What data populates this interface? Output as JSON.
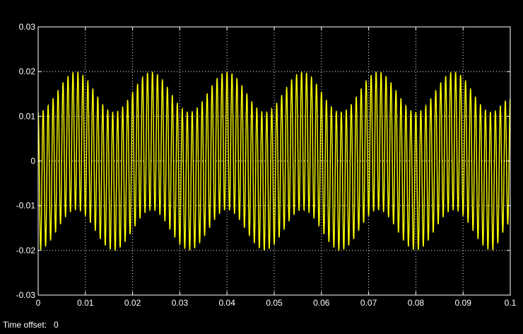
{
  "window": {
    "time_offset_label": "Time offset:",
    "time_offset_value": "0"
  },
  "colors": {
    "background": "#000000",
    "axes_face": "#000000",
    "axes_edge": "#ffffff",
    "grid": "#ffffff",
    "trace": "#ffff00",
    "text": "#ffffff"
  },
  "chart_data": {
    "type": "line",
    "title": "",
    "xlabel": "",
    "ylabel": "",
    "xlim": [
      0,
      0.1
    ],
    "ylim": [
      -0.03,
      0.03
    ],
    "grid": true,
    "grid_style": "dotted",
    "x_ticks": [
      0,
      0.01,
      0.02,
      0.03,
      0.04,
      0.05,
      0.06,
      0.07,
      0.08,
      0.09,
      0.1
    ],
    "x_tick_labels": [
      "0",
      "0.01",
      "0.02",
      "0.03",
      "0.04",
      "0.05",
      "0.06",
      "0.07",
      "0.08",
      "0.09",
      "0.1"
    ],
    "y_ticks": [
      0.03,
      0.02,
      0.01,
      0,
      -0.01,
      -0.02,
      -0.03
    ],
    "y_tick_labels": [
      "0.03",
      "0.02",
      "0.01",
      "0",
      "-0.01",
      "-0.02",
      "-0.03"
    ],
    "series": [
      {
        "color": "#ffff00",
        "envelope_upper": {
          "x": [
            0,
            0.008,
            0.016,
            0.024,
            0.032,
            0.04,
            0.048,
            0.056,
            0.064,
            0.072,
            0.08,
            0.088,
            0.096,
            0.1
          ],
          "y": [
            0.011,
            0.02,
            0.011,
            0.02,
            0.011,
            0.02,
            0.011,
            0.02,
            0.011,
            0.02,
            0.011,
            0.02,
            0.011,
            0.014
          ]
        },
        "envelope_lower": {
          "x": [
            0,
            0.008,
            0.016,
            0.024,
            0.032,
            0.04,
            0.048,
            0.056,
            0.064,
            0.072,
            0.08,
            0.088,
            0.096,
            0.1
          ],
          "y": [
            -0.02,
            -0.011,
            -0.02,
            -0.011,
            -0.02,
            -0.011,
            -0.02,
            -0.011,
            -0.02,
            -0.011,
            -0.02,
            -0.011,
            -0.02,
            -0.014
          ]
        },
        "oscillation_cycles": 95
      }
    ]
  }
}
